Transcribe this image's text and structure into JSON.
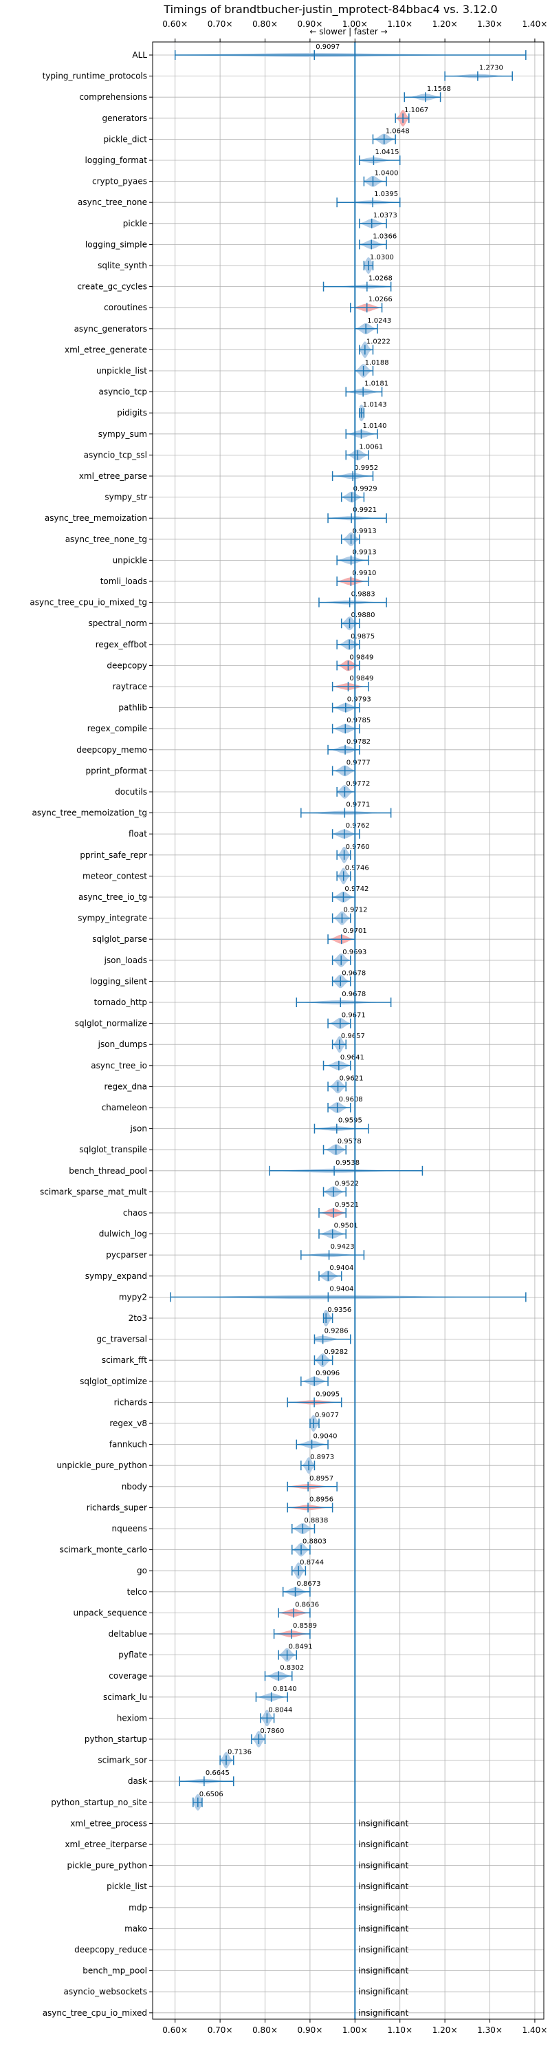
{
  "chart_data": {
    "type": "violin",
    "title": "Timings of brandtbucher-justin_mprotect-84bbac4 vs. 3.12.0",
    "direction_label": "← slower | faster →",
    "xlim": [
      0.55,
      1.42
    ],
    "x_ticks": [
      0.6,
      0.7,
      0.8,
      0.9,
      1.0,
      1.1,
      1.2,
      1.3,
      1.4
    ],
    "x_tick_labels": [
      "0.60×",
      "0.70×",
      "0.80×",
      "0.90×",
      "1.00×",
      "1.10×",
      "1.20×",
      "1.30×",
      "1.40×"
    ],
    "reference_line": 1.0,
    "grid": true,
    "colors": {
      "normal": "#a8c8e4",
      "slower": "#f4a6a6",
      "line": "#1f77b4",
      "text": "#000000"
    },
    "insignificant_label": "insignificant",
    "benchmarks": [
      {
        "name": "ALL",
        "mean": 0.9097,
        "min": 0.6,
        "max": 1.38,
        "label": "0.9097"
      },
      {
        "name": "typing_runtime_protocols",
        "mean": 1.273,
        "min": 1.2,
        "max": 1.35,
        "label": "1.2730"
      },
      {
        "name": "comprehensions",
        "mean": 1.1568,
        "min": 1.11,
        "max": 1.19,
        "label": "1.1568"
      },
      {
        "name": "generators",
        "mean": 1.1067,
        "min": 1.09,
        "max": 1.12,
        "label": "1.1067",
        "slower": true
      },
      {
        "name": "pickle_dict",
        "mean": 1.0648,
        "min": 1.04,
        "max": 1.09,
        "label": "1.0648"
      },
      {
        "name": "logging_format",
        "mean": 1.0415,
        "min": 1.01,
        "max": 1.1,
        "label": "1.0415"
      },
      {
        "name": "crypto_pyaes",
        "mean": 1.04,
        "min": 1.02,
        "max": 1.07,
        "label": "1.0400"
      },
      {
        "name": "async_tree_none",
        "mean": 1.0395,
        "min": 0.96,
        "max": 1.1,
        "label": "1.0395"
      },
      {
        "name": "pickle",
        "mean": 1.0373,
        "min": 1.01,
        "max": 1.07,
        "label": "1.0373"
      },
      {
        "name": "logging_simple",
        "mean": 1.0366,
        "min": 1.01,
        "max": 1.07,
        "label": "1.0366"
      },
      {
        "name": "sqlite_synth",
        "mean": 1.03,
        "min": 1.02,
        "max": 1.04,
        "label": "1.0300"
      },
      {
        "name": "create_gc_cycles",
        "mean": 1.0268,
        "min": 0.93,
        "max": 1.08,
        "label": "1.0268"
      },
      {
        "name": "coroutines",
        "mean": 1.0266,
        "min": 0.99,
        "max": 1.06,
        "label": "1.0266",
        "slower": true
      },
      {
        "name": "async_generators",
        "mean": 1.0243,
        "min": 1.0,
        "max": 1.05,
        "label": "1.0243"
      },
      {
        "name": "xml_etree_generate",
        "mean": 1.0222,
        "min": 1.01,
        "max": 1.04,
        "label": "1.0222"
      },
      {
        "name": "unpickle_list",
        "mean": 1.0188,
        "min": 1.0,
        "max": 1.04,
        "label": "1.0188"
      },
      {
        "name": "asyncio_tcp",
        "mean": 1.0181,
        "min": 0.98,
        "max": 1.06,
        "label": "1.0181"
      },
      {
        "name": "pidigits",
        "mean": 1.0143,
        "min": 1.01,
        "max": 1.02,
        "label": "1.0143"
      },
      {
        "name": "sympy_sum",
        "mean": 1.014,
        "min": 0.98,
        "max": 1.05,
        "label": "1.0140"
      },
      {
        "name": "asyncio_tcp_ssl",
        "mean": 1.0061,
        "min": 0.98,
        "max": 1.03,
        "label": "1.0061"
      },
      {
        "name": "xml_etree_parse",
        "mean": 0.9952,
        "min": 0.95,
        "max": 1.04,
        "label": "0.9952"
      },
      {
        "name": "sympy_str",
        "mean": 0.9929,
        "min": 0.97,
        "max": 1.02,
        "label": "0.9929"
      },
      {
        "name": "async_tree_memoization",
        "mean": 0.9921,
        "min": 0.94,
        "max": 1.07,
        "label": "0.9921"
      },
      {
        "name": "async_tree_none_tg",
        "mean": 0.9913,
        "min": 0.97,
        "max": 1.01,
        "label": "0.9913"
      },
      {
        "name": "unpickle",
        "mean": 0.9913,
        "min": 0.96,
        "max": 1.03,
        "label": "0.9913"
      },
      {
        "name": "tomli_loads",
        "mean": 0.991,
        "min": 0.96,
        "max": 1.03,
        "label": "0.9910",
        "slower": true
      },
      {
        "name": "async_tree_cpu_io_mixed_tg",
        "mean": 0.9883,
        "min": 0.92,
        "max": 1.07,
        "label": "0.9883"
      },
      {
        "name": "spectral_norm",
        "mean": 0.988,
        "min": 0.97,
        "max": 1.01,
        "label": "0.9880"
      },
      {
        "name": "regex_effbot",
        "mean": 0.9875,
        "min": 0.96,
        "max": 1.01,
        "label": "0.9875"
      },
      {
        "name": "deepcopy",
        "mean": 0.9849,
        "min": 0.96,
        "max": 1.01,
        "label": "0.9849",
        "slower": true
      },
      {
        "name": "raytrace",
        "mean": 0.9849,
        "min": 0.95,
        "max": 1.03,
        "label": "0.9849",
        "slower": true
      },
      {
        "name": "pathlib",
        "mean": 0.9793,
        "min": 0.95,
        "max": 1.01,
        "label": "0.9793"
      },
      {
        "name": "regex_compile",
        "mean": 0.9785,
        "min": 0.95,
        "max": 1.01,
        "label": "0.9785"
      },
      {
        "name": "deepcopy_memo",
        "mean": 0.9782,
        "min": 0.94,
        "max": 1.01,
        "label": "0.9782"
      },
      {
        "name": "pprint_pformat",
        "mean": 0.9777,
        "min": 0.95,
        "max": 1.0,
        "label": "0.9777"
      },
      {
        "name": "docutils",
        "mean": 0.9772,
        "min": 0.96,
        "max": 1.0,
        "label": "0.9772"
      },
      {
        "name": "async_tree_memoization_tg",
        "mean": 0.9771,
        "min": 0.88,
        "max": 1.08,
        "label": "0.9771"
      },
      {
        "name": "float",
        "mean": 0.9762,
        "min": 0.95,
        "max": 1.01,
        "label": "0.9762"
      },
      {
        "name": "pprint_safe_repr",
        "mean": 0.976,
        "min": 0.96,
        "max": 0.99,
        "label": "0.9760"
      },
      {
        "name": "meteor_contest",
        "mean": 0.9746,
        "min": 0.96,
        "max": 0.99,
        "label": "0.9746"
      },
      {
        "name": "async_tree_io_tg",
        "mean": 0.9742,
        "min": 0.95,
        "max": 1.0,
        "label": "0.9742"
      },
      {
        "name": "sympy_integrate",
        "mean": 0.9712,
        "min": 0.95,
        "max": 0.99,
        "label": "0.9712"
      },
      {
        "name": "sqlglot_parse",
        "mean": 0.9701,
        "min": 0.94,
        "max": 1.0,
        "label": "0.9701",
        "slower": true
      },
      {
        "name": "json_loads",
        "mean": 0.9693,
        "min": 0.95,
        "max": 0.99,
        "label": "0.9693"
      },
      {
        "name": "logging_silent",
        "mean": 0.9678,
        "min": 0.95,
        "max": 0.99,
        "label": "0.9678"
      },
      {
        "name": "tornado_http",
        "mean": 0.9678,
        "min": 0.87,
        "max": 1.08,
        "label": "0.9678"
      },
      {
        "name": "sqlglot_normalize",
        "mean": 0.9671,
        "min": 0.94,
        "max": 0.99,
        "label": "0.9671"
      },
      {
        "name": "json_dumps",
        "mean": 0.9657,
        "min": 0.95,
        "max": 0.98,
        "label": "0.9657"
      },
      {
        "name": "async_tree_io",
        "mean": 0.9641,
        "min": 0.93,
        "max": 0.99,
        "label": "0.9641"
      },
      {
        "name": "regex_dna",
        "mean": 0.9621,
        "min": 0.94,
        "max": 0.98,
        "label": "0.9621"
      },
      {
        "name": "chameleon",
        "mean": 0.9608,
        "min": 0.94,
        "max": 0.99,
        "label": "0.9608"
      },
      {
        "name": "json",
        "mean": 0.9595,
        "min": 0.91,
        "max": 1.03,
        "label": "0.9595"
      },
      {
        "name": "sqlglot_transpile",
        "mean": 0.9578,
        "min": 0.93,
        "max": 0.98,
        "label": "0.9578"
      },
      {
        "name": "bench_thread_pool",
        "mean": 0.9538,
        "min": 0.81,
        "max": 1.15,
        "label": "0.9538"
      },
      {
        "name": "scimark_sparse_mat_mult",
        "mean": 0.9522,
        "min": 0.93,
        "max": 0.98,
        "label": "0.9522"
      },
      {
        "name": "chaos",
        "mean": 0.9521,
        "min": 0.92,
        "max": 0.98,
        "label": "0.9521",
        "slower": true
      },
      {
        "name": "dulwich_log",
        "mean": 0.9501,
        "min": 0.92,
        "max": 0.98,
        "label": "0.9501"
      },
      {
        "name": "pycparser",
        "mean": 0.9423,
        "min": 0.88,
        "max": 1.02,
        "label": "0.9423"
      },
      {
        "name": "sympy_expand",
        "mean": 0.9404,
        "min": 0.92,
        "max": 0.97,
        "label": "0.9404"
      },
      {
        "name": "mypy2",
        "mean": 0.9404,
        "min": 0.59,
        "max": 1.38,
        "label": "0.9404"
      },
      {
        "name": "2to3",
        "mean": 0.9356,
        "min": 0.93,
        "max": 0.95,
        "label": "0.9356"
      },
      {
        "name": "gc_traversal",
        "mean": 0.9286,
        "min": 0.91,
        "max": 0.99,
        "label": "0.9286"
      },
      {
        "name": "scimark_fft",
        "mean": 0.9282,
        "min": 0.91,
        "max": 0.95,
        "label": "0.9282"
      },
      {
        "name": "sqlglot_optimize",
        "mean": 0.9096,
        "min": 0.88,
        "max": 0.94,
        "label": "0.9096"
      },
      {
        "name": "richards",
        "mean": 0.9095,
        "min": 0.85,
        "max": 0.97,
        "label": "0.9095",
        "slower": true
      },
      {
        "name": "regex_v8",
        "mean": 0.9077,
        "min": 0.9,
        "max": 0.92,
        "label": "0.9077"
      },
      {
        "name": "fannkuch",
        "mean": 0.904,
        "min": 0.87,
        "max": 0.94,
        "label": "0.9040"
      },
      {
        "name": "unpickle_pure_python",
        "mean": 0.8973,
        "min": 0.88,
        "max": 0.91,
        "label": "0.8973"
      },
      {
        "name": "nbody",
        "mean": 0.8957,
        "min": 0.85,
        "max": 0.96,
        "label": "0.8957",
        "slower": true
      },
      {
        "name": "richards_super",
        "mean": 0.8956,
        "min": 0.85,
        "max": 0.95,
        "label": "0.8956",
        "slower": true
      },
      {
        "name": "nqueens",
        "mean": 0.8838,
        "min": 0.86,
        "max": 0.91,
        "label": "0.8838"
      },
      {
        "name": "scimark_monte_carlo",
        "mean": 0.8803,
        "min": 0.86,
        "max": 0.9,
        "label": "0.8803"
      },
      {
        "name": "go",
        "mean": 0.8744,
        "min": 0.86,
        "max": 0.89,
        "label": "0.8744"
      },
      {
        "name": "telco",
        "mean": 0.8673,
        "min": 0.84,
        "max": 0.9,
        "label": "0.8673"
      },
      {
        "name": "unpack_sequence",
        "mean": 0.8636,
        "min": 0.83,
        "max": 0.9,
        "label": "0.8636",
        "slower": true
      },
      {
        "name": "deltablue",
        "mean": 0.8589,
        "min": 0.82,
        "max": 0.9,
        "label": "0.8589",
        "slower": true
      },
      {
        "name": "pyflate",
        "mean": 0.8491,
        "min": 0.83,
        "max": 0.87,
        "label": "0.8491"
      },
      {
        "name": "coverage",
        "mean": 0.8302,
        "min": 0.8,
        "max": 0.86,
        "label": "0.8302"
      },
      {
        "name": "scimark_lu",
        "mean": 0.814,
        "min": 0.78,
        "max": 0.85,
        "label": "0.8140"
      },
      {
        "name": "hexiom",
        "mean": 0.8044,
        "min": 0.79,
        "max": 0.82,
        "label": "0.8044"
      },
      {
        "name": "python_startup",
        "mean": 0.786,
        "min": 0.77,
        "max": 0.8,
        "label": "0.7860"
      },
      {
        "name": "scimark_sor",
        "mean": 0.7136,
        "min": 0.7,
        "max": 0.73,
        "label": "0.7136"
      },
      {
        "name": "dask",
        "mean": 0.6645,
        "min": 0.61,
        "max": 0.73,
        "label": "0.6645"
      },
      {
        "name": "python_startup_no_site",
        "mean": 0.6506,
        "min": 0.64,
        "max": 0.66,
        "label": "0.6506"
      },
      {
        "name": "xml_etree_process",
        "insignificant": true
      },
      {
        "name": "xml_etree_iterparse",
        "insignificant": true
      },
      {
        "name": "pickle_pure_python",
        "insignificant": true
      },
      {
        "name": "pickle_list",
        "insignificant": true
      },
      {
        "name": "mdp",
        "insignificant": true
      },
      {
        "name": "mako",
        "insignificant": true
      },
      {
        "name": "deepcopy_reduce",
        "insignificant": true
      },
      {
        "name": "bench_mp_pool",
        "insignificant": true
      },
      {
        "name": "asyncio_websockets",
        "insignificant": true
      },
      {
        "name": "async_tree_cpu_io_mixed",
        "insignificant": true
      }
    ]
  }
}
